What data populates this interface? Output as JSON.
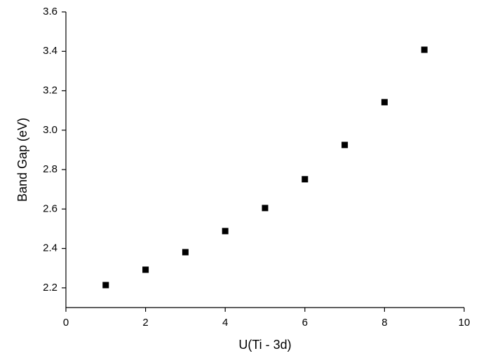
{
  "chart_data": {
    "type": "scatter",
    "xlabel": "U(Ti - 3d)",
    "ylabel": "Band Gap (eV)",
    "x": [
      1,
      2,
      3,
      4,
      5,
      6,
      7,
      8,
      9
    ],
    "values": [
      2.214,
      2.292,
      2.381,
      2.488,
      2.605,
      2.751,
      2.925,
      3.142,
      3.408
    ],
    "color": "#000000",
    "marker": "square",
    "xlim": [
      0,
      10
    ],
    "xticks": [
      0,
      2,
      4,
      6,
      8,
      10
    ],
    "ylim": [
      2.1,
      3.6
    ],
    "yticks": [
      2.2,
      2.4,
      2.6,
      2.8,
      {
        "value": 3,
        "label": "3.0"
      },
      3.2,
      3.4,
      3.6
    ],
    "grid": false
  }
}
